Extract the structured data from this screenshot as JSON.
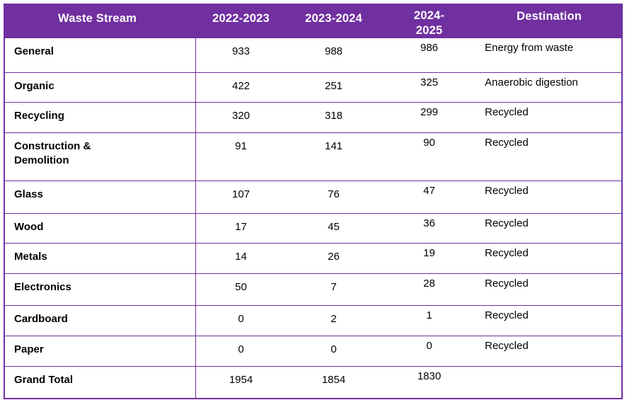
{
  "table": {
    "colors": {
      "header_bg": "#7030A0",
      "header_text": "#FFFFFF",
      "border": "#7030A0",
      "body_text": "#000000"
    },
    "columns": [
      {
        "key": "stream",
        "label": "Waste Stream"
      },
      {
        "key": "y1",
        "label": "2022-2023"
      },
      {
        "key": "y2",
        "label": "2023-2024"
      },
      {
        "key": "y3",
        "label": "2024-2025"
      },
      {
        "key": "destination",
        "label": "Destination"
      }
    ],
    "rows": [
      {
        "stream": "General",
        "y1": "933",
        "y2": "988",
        "y3": "986",
        "destination": "Energy from waste"
      },
      {
        "stream": "Organic",
        "y1": "422",
        "y2": "251",
        "y3": "325",
        "destination": "Anaerobic digestion"
      },
      {
        "stream": "Recycling",
        "y1": "320",
        "y2": "318",
        "y3": "299",
        "destination": "Recycled"
      },
      {
        "stream": "Construction & Demolition",
        "y1": "91",
        "y2": "141",
        "y3": "90",
        "destination": "Recycled"
      },
      {
        "stream": "Glass",
        "y1": "107",
        "y2": "76",
        "y3": "47",
        "destination": "Recycled"
      },
      {
        "stream": "Wood",
        "y1": "17",
        "y2": "45",
        "y3": "36",
        "destination": "Recycled"
      },
      {
        "stream": "Metals",
        "y1": "14",
        "y2": "26",
        "y3": "19",
        "destination": "Recycled"
      },
      {
        "stream": "Electronics",
        "y1": "50",
        "y2": "7",
        "y3": "28",
        "destination": "Recycled"
      },
      {
        "stream": "Cardboard",
        "y1": "0",
        "y2": "2",
        "y3": "1",
        "destination": "Recycled"
      },
      {
        "stream": "Paper",
        "y1": "0",
        "y2": "0",
        "y3": "0",
        "destination": "Recycled"
      },
      {
        "stream": "Grand Total",
        "y1": "1954",
        "y2": "1854",
        "y3": "1830",
        "destination": ""
      }
    ]
  }
}
